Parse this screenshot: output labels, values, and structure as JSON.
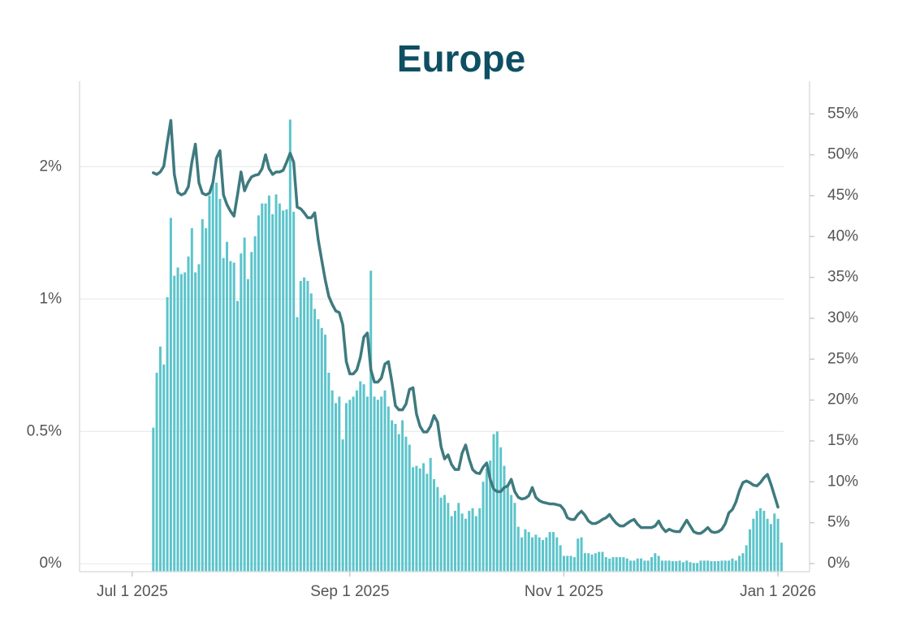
{
  "chart_data": {
    "type": "bar",
    "title": "Europe",
    "yscale": "symlog",
    "linthresh": 0.5,
    "ylim": [
      -0.03,
      3.13
    ],
    "yticks": [
      {
        "value": 0,
        "label": "0%"
      },
      {
        "value": 0.5,
        "label": "0.5%"
      },
      {
        "value": 1,
        "label": "1%"
      },
      {
        "value": 2,
        "label": "2%"
      }
    ],
    "y2lim": [
      -1,
      59
    ],
    "y2ticks": [
      {
        "value": 0,
        "label": "0%"
      },
      {
        "value": 5,
        "label": "5%"
      },
      {
        "value": 10,
        "label": "10%"
      },
      {
        "value": 15,
        "label": "15%"
      },
      {
        "value": 20,
        "label": "20%"
      },
      {
        "value": 25,
        "label": "25%"
      },
      {
        "value": 30,
        "label": "30%"
      },
      {
        "value": 35,
        "label": "35%"
      },
      {
        "value": 40,
        "label": "40%"
      },
      {
        "value": 45,
        "label": "45%"
      },
      {
        "value": 50,
        "label": "50%"
      },
      {
        "value": 55,
        "label": "55%"
      }
    ],
    "xlim": [
      "2025-06-16",
      "2026-01-10"
    ],
    "xticks": [
      {
        "value": "2025-07-01",
        "label": "Jul 1 2025"
      },
      {
        "value": "2025-09-01",
        "label": "Sep 1 2025"
      },
      {
        "value": "2025-11-01",
        "label": "Nov 1 2025"
      },
      {
        "value": "2026-01-01",
        "label": "Jan 1 2026"
      }
    ],
    "grid": true,
    "x": [
      "2025-07-07",
      "2025-07-08",
      "2025-07-09",
      "2025-07-10",
      "2025-07-11",
      "2025-07-12",
      "2025-07-13",
      "2025-07-14",
      "2025-07-15",
      "2025-07-16",
      "2025-07-17",
      "2025-07-18",
      "2025-07-19",
      "2025-07-20",
      "2025-07-21",
      "2025-07-22",
      "2025-07-23",
      "2025-07-24",
      "2025-07-25",
      "2025-07-26",
      "2025-07-27",
      "2025-07-28",
      "2025-07-29",
      "2025-07-30",
      "2025-07-31",
      "2025-08-01",
      "2025-08-02",
      "2025-08-03",
      "2025-08-04",
      "2025-08-05",
      "2025-08-06",
      "2025-08-07",
      "2025-08-08",
      "2025-08-09",
      "2025-08-10",
      "2025-08-11",
      "2025-08-12",
      "2025-08-13",
      "2025-08-14",
      "2025-08-15",
      "2025-08-16",
      "2025-08-17",
      "2025-08-18",
      "2025-08-19",
      "2025-08-20",
      "2025-08-21",
      "2025-08-22",
      "2025-08-23",
      "2025-08-24",
      "2025-08-25",
      "2025-08-26",
      "2025-08-27",
      "2025-08-28",
      "2025-08-29",
      "2025-08-30",
      "2025-08-31",
      "2025-09-01",
      "2025-09-02",
      "2025-09-03",
      "2025-09-04",
      "2025-09-05",
      "2025-09-06",
      "2025-09-07",
      "2025-09-08",
      "2025-09-09",
      "2025-09-10",
      "2025-09-11",
      "2025-09-12",
      "2025-09-13",
      "2025-09-14",
      "2025-09-15",
      "2025-09-16",
      "2025-09-17",
      "2025-09-18",
      "2025-09-19",
      "2025-09-20",
      "2025-09-21",
      "2025-09-22",
      "2025-09-23",
      "2025-09-24",
      "2025-09-25",
      "2025-09-26",
      "2025-09-27",
      "2025-09-28",
      "2025-09-29",
      "2025-09-30",
      "2025-10-01",
      "2025-10-02",
      "2025-10-03",
      "2025-10-04",
      "2025-10-05",
      "2025-10-06",
      "2025-10-07",
      "2025-10-08",
      "2025-10-09",
      "2025-10-10",
      "2025-10-11",
      "2025-10-12",
      "2025-10-13",
      "2025-10-14",
      "2025-10-15",
      "2025-10-16",
      "2025-10-17",
      "2025-10-18",
      "2025-10-19",
      "2025-10-20",
      "2025-10-21",
      "2025-10-22",
      "2025-10-23",
      "2025-10-24",
      "2025-10-25",
      "2025-10-26",
      "2025-10-27",
      "2025-10-28",
      "2025-10-29",
      "2025-10-30",
      "2025-10-31",
      "2025-11-01",
      "2025-11-02",
      "2025-11-03",
      "2025-11-04",
      "2025-11-05",
      "2025-11-06",
      "2025-11-07",
      "2025-11-08",
      "2025-11-09",
      "2025-11-10",
      "2025-11-11",
      "2025-11-12",
      "2025-11-13",
      "2025-11-14",
      "2025-11-15",
      "2025-11-16",
      "2025-11-17",
      "2025-11-18",
      "2025-11-19",
      "2025-11-20",
      "2025-11-21",
      "2025-11-22",
      "2025-11-23",
      "2025-11-24",
      "2025-11-25",
      "2025-11-26",
      "2025-11-27",
      "2025-11-28",
      "2025-11-29",
      "2025-11-30",
      "2025-12-01",
      "2025-12-02",
      "2025-12-03",
      "2025-12-04",
      "2025-12-05",
      "2025-12-06",
      "2025-12-07",
      "2025-12-08",
      "2025-12-09",
      "2025-12-10",
      "2025-12-11",
      "2025-12-12",
      "2025-12-13",
      "2025-12-14",
      "2025-12-15",
      "2025-12-16",
      "2025-12-17",
      "2025-12-18",
      "2025-12-19",
      "2025-12-20",
      "2025-12-21",
      "2025-12-22",
      "2025-12-23",
      "2025-12-24",
      "2025-12-25",
      "2025-12-26",
      "2025-12-27",
      "2025-12-28",
      "2025-12-29",
      "2025-12-30",
      "2025-12-31",
      "2026-01-01",
      "2026-01-02"
    ],
    "series": [
      {
        "type": "bar",
        "axis": "y",
        "color": "#5cc4cb",
        "values": [
          0.51,
          0.68,
          0.78,
          0.71,
          1.01,
          1.53,
          1.13,
          1.18,
          1.14,
          1.15,
          1.25,
          1.45,
          1.15,
          1.2,
          1.52,
          1.45,
          1.72,
          1.82,
          1.84,
          1.69,
          1.24,
          1.35,
          1.22,
          1.21,
          0.99,
          1.27,
          1.38,
          1.11,
          1.28,
          1.39,
          1.55,
          1.65,
          1.65,
          1.72,
          1.56,
          1.73,
          1.65,
          1.59,
          1.6,
          2.56,
          1.58,
          0.91,
          1.1,
          1.12,
          1.1,
          1.03,
          0.95,
          0.9,
          0.86,
          0.83,
          0.68,
          0.62,
          0.58,
          0.6,
          0.47,
          0.58,
          0.59,
          0.6,
          0.62,
          0.65,
          0.64,
          0.6,
          1.16,
          0.6,
          0.59,
          0.6,
          0.62,
          0.57,
          0.53,
          0.52,
          0.49,
          0.53,
          0.48,
          0.45,
          0.365,
          0.37,
          0.36,
          0.38,
          0.34,
          0.4,
          0.32,
          0.29,
          0.25,
          0.26,
          0.23,
          0.18,
          0.2,
          0.23,
          0.19,
          0.17,
          0.2,
          0.21,
          0.18,
          0.21,
          0.31,
          0.36,
          0.39,
          0.49,
          0.5,
          0.44,
          0.37,
          0.3,
          0.26,
          0.23,
          0.14,
          0.1,
          0.13,
          0.12,
          0.1,
          0.11,
          0.1,
          0.09,
          0.1,
          0.12,
          0.12,
          0.1,
          0.07,
          0.03,
          0.03,
          0.03,
          0.025,
          0.095,
          0.1,
          0.04,
          0.04,
          0.035,
          0.04,
          0.045,
          0.045,
          0.025,
          0.02,
          0.025,
          0.025,
          0.025,
          0.025,
          0.02,
          0.012,
          0.012,
          0.02,
          0.02,
          0.012,
          0.012,
          0.025,
          0.04,
          0.03,
          0.012,
          0.012,
          0.012,
          0.01,
          0.01,
          0.012,
          0.006,
          0.012,
          0.006,
          0.003,
          0.003,
          0.012,
          0.012,
          0.012,
          0.01,
          0.01,
          0.01,
          0.012,
          0.012,
          0.012,
          0.02,
          0.012,
          0.03,
          0.04,
          0.07,
          0.13,
          0.17,
          0.2,
          0.21,
          0.2,
          0.17,
          0.15,
          0.19,
          0.17,
          0.08
        ]
      },
      {
        "type": "line",
        "axis": "y2",
        "color": "#3e7a7f",
        "values": [
          47.8,
          47.6,
          47.9,
          48.6,
          51.5,
          54.2,
          47.6,
          45.4,
          45.1,
          45.3,
          46.1,
          49.1,
          51.3,
          46.6,
          45.3,
          45.1,
          45.3,
          46.6,
          49.6,
          50.5,
          45.1,
          43.9,
          43.1,
          42.5,
          45.1,
          47.9,
          45.6,
          46.6,
          47.3,
          47.5,
          47.6,
          48.3,
          50,
          48.3,
          47.6,
          47.9,
          47.9,
          48.1,
          49.1,
          50.2,
          49.1,
          43.6,
          43.4,
          42.9,
          42.3,
          42.3,
          42.9,
          39.6,
          37.1,
          34.7,
          32.7,
          31.7,
          30.9,
          30.7,
          29.2,
          24.7,
          23.2,
          23.2,
          23.7,
          25.2,
          27.7,
          28.2,
          23.7,
          22.2,
          22.2,
          22.7,
          24.4,
          24.7,
          22.2,
          19.3,
          18.8,
          18.8,
          19.5,
          21.3,
          21.5,
          18.3,
          16.8,
          16.1,
          16.1,
          16.8,
          18.1,
          17.3,
          14.3,
          12.8,
          13.3,
          12.1,
          11.5,
          11.5,
          13.5,
          14.5,
          12.8,
          11.5,
          11.1,
          11,
          11.8,
          12.3,
          10.3,
          9.1,
          8.8,
          8.8,
          9.3,
          9.5,
          10.3,
          8.8,
          8.1,
          7.9,
          8,
          8.3,
          9.3,
          8.1,
          7.7,
          7.5,
          7.4,
          7.3,
          7.3,
          7.2,
          7.1,
          6.6,
          5.6,
          5.4,
          5.4,
          6,
          6.4,
          5.9,
          5.2,
          4.9,
          4.9,
          5.1,
          5.4,
          5.6,
          6,
          5.4,
          4.9,
          4.6,
          4.6,
          4.9,
          5.2,
          5.4,
          4.8,
          4.4,
          4.4,
          4.4,
          4.4,
          4.6,
          5.2,
          4.4,
          3.9,
          4.2,
          4,
          3.9,
          3.9,
          4.6,
          5.3,
          4.6,
          3.9,
          3.7,
          3.7,
          4,
          4.4,
          3.9,
          3.8,
          3.9,
          4.2,
          4.9,
          6.2,
          6.6,
          7.5,
          8.9,
          9.9,
          10.1,
          9.9,
          9.6,
          9.5,
          9.9,
          10.5,
          10.9,
          9.7,
          8.3,
          6.9,
          null
        ]
      }
    ]
  }
}
